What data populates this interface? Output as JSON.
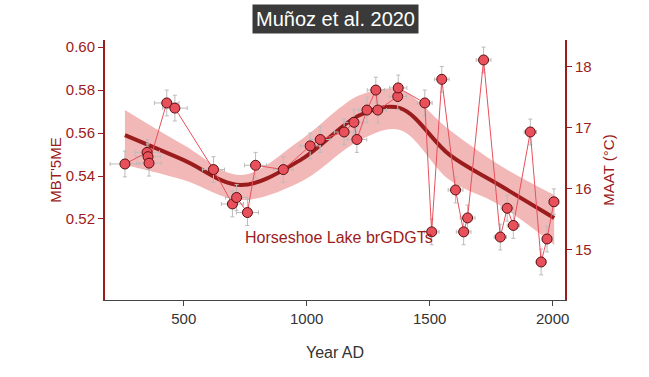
{
  "chart_data": {
    "type": "scatter",
    "title": "Muñoz et al. 2020",
    "x_label": "Year AD",
    "y_label": "MBT'5ME",
    "y2_label": "MAAT (°C)",
    "annotations": [
      "Horseshoe Lake brGDGTs"
    ],
    "xlim": [
      180,
      2050
    ],
    "xticks": [
      500,
      1000,
      1500,
      2000
    ],
    "ylim": [
      0.4823,
      0.6033
    ],
    "yticks": [
      0.52,
      0.54,
      0.56,
      0.58,
      {
        "value": 0.6,
        "label": "0.60"
      }
    ],
    "y2lim": [
      14.18,
      18.44
    ],
    "y2ticks": [
      15,
      16,
      17,
      18
    ],
    "grid": false,
    "series": [
      {
        "type": "band",
        "color": "#f2b8b8",
        "x": [
          261,
          500,
          731,
          974,
          1217,
          1379,
          1581,
          1783,
          2006
        ],
        "lower": [
          0.5451,
          0.5381,
          0.5288,
          0.5372,
          0.5567,
          0.5614,
          0.5381,
          0.5265,
          0.5079
        ],
        "upper": [
          0.5707,
          0.5544,
          0.5405,
          0.5567,
          0.5777,
          0.58,
          0.5614,
          0.5451,
          0.5312
        ]
      },
      {
        "type": "line",
        "color": "#9b1c1c",
        "line_style": "solid",
        "x": [
          261,
          500,
          731,
          974,
          1217,
          1379,
          1581,
          1783,
          2006
        ],
        "values": [
          0.559,
          0.5474,
          0.5358,
          0.5474,
          0.5684,
          0.5716,
          0.5498,
          0.5358,
          0.5205
        ]
      },
      {
        "type": "scatter",
        "color": "#e8505b",
        "marker": "circle",
        "x": [
          261,
          351,
          355,
          359,
          431,
          464,
          621,
          698,
          715,
          759,
          792,
          905,
          1014,
          1055,
          1152,
          1192,
          1204,
          1245,
          1281,
          1289,
          1370,
          1372,
          1480,
          1508,
          1549,
          1605,
          1638,
          1654,
          1719,
          1787,
          1815,
          1840,
          1909,
          1953,
          1977,
          2005
        ],
        "values": [
          0.5456,
          0.551,
          0.549,
          0.546,
          0.574,
          0.5716,
          0.543,
          0.527,
          0.53,
          0.523,
          0.545,
          0.543,
          0.554,
          0.557,
          0.5605,
          0.565,
          0.557,
          0.5707,
          0.58,
          0.5707,
          0.577,
          0.581,
          0.574,
          0.514,
          0.585,
          0.5335,
          0.514,
          0.5205,
          0.594,
          0.5116,
          0.525,
          0.517,
          0.5605,
          0.5,
          0.5107,
          0.528
        ],
        "x_error": [
          60,
          50,
          50,
          50,
          50,
          50,
          45,
          45,
          45,
          45,
          45,
          40,
          40,
          40,
          40,
          40,
          40,
          35,
          35,
          35,
          35,
          35,
          30,
          30,
          30,
          30,
          30,
          30,
          30,
          25,
          25,
          25,
          25,
          20,
          20,
          20
        ],
        "y_error": [
          0.006,
          0.006,
          0.006,
          0.006,
          0.006,
          0.006,
          0.006,
          0.006,
          0.006,
          0.006,
          0.006,
          0.006,
          0.006,
          0.006,
          0.006,
          0.006,
          0.006,
          0.006,
          0.006,
          0.006,
          0.006,
          0.006,
          0.006,
          0.006,
          0.006,
          0.006,
          0.006,
          0.006,
          0.006,
          0.006,
          0.006,
          0.006,
          0.006,
          0.006,
          0.006,
          0.006
        ]
      }
    ]
  }
}
